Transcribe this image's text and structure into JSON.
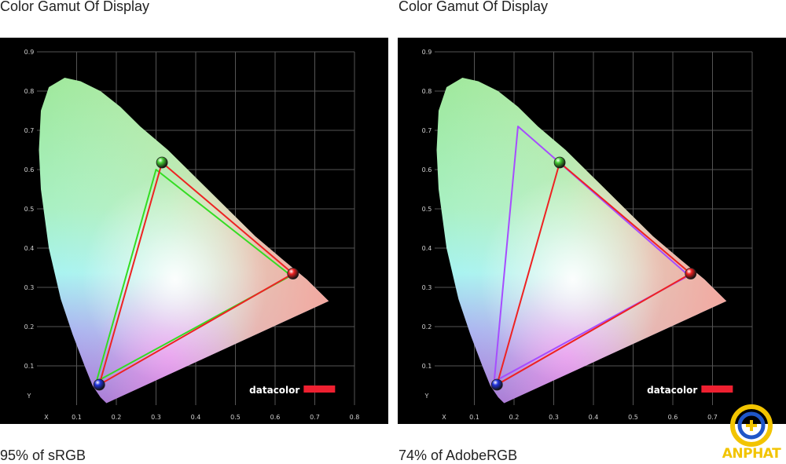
{
  "panels": [
    {
      "title": "Color Gamut Of Display",
      "caption": "95% of sRGB"
    },
    {
      "title": "Color Gamut Of Display",
      "caption": "74% of AdobeRGB"
    }
  ],
  "logo": {
    "text": "ANPHAT",
    "colors": {
      "yellow": "#f2c400",
      "blue": "#1f56c8"
    }
  },
  "chart_data": [
    {
      "type": "scatter",
      "title": "Color Gamut Of Display",
      "x_ticks": [
        "X",
        "0.1",
        "0.2",
        "0.3",
        "0.4",
        "0.5",
        "0.6",
        "0.7",
        "0.8"
      ],
      "y_ticks": [
        "Y",
        "0.1",
        "0.2",
        "0.3",
        "0.4",
        "0.5",
        "0.6",
        "0.7",
        "0.8",
        "0.9"
      ],
      "xlim": [
        0,
        0.8
      ],
      "ylim": [
        0,
        0.9
      ],
      "grid": true,
      "watermark": "datacolor",
      "reference_triangle": {
        "color": "#33dd22",
        "points": [
          [
            0.64,
            0.33
          ],
          [
            0.3,
            0.6
          ],
          [
            0.15,
            0.06
          ]
        ]
      },
      "measured_triangle": {
        "color": "#ee2222",
        "points": [
          [
            0.645,
            0.335
          ],
          [
            0.315,
            0.618
          ],
          [
            0.157,
            0.052
          ]
        ]
      },
      "primaries": [
        {
          "x": 0.645,
          "y": 0.335,
          "color": "#ee2222"
        },
        {
          "x": 0.315,
          "y": 0.618,
          "color": "#44cc33"
        },
        {
          "x": 0.157,
          "y": 0.052,
          "color": "#2233dd"
        }
      ]
    },
    {
      "type": "scatter",
      "title": "Color Gamut Of Display",
      "x_ticks": [
        "X",
        "0.1",
        "0.2",
        "0.3",
        "0.4",
        "0.5",
        "0.6",
        "0.7"
      ],
      "y_ticks": [
        "Y",
        "0.1",
        "0.2",
        "0.3",
        "0.4",
        "0.5",
        "0.6",
        "0.7",
        "0.8",
        "0.9"
      ],
      "xlim": [
        0,
        0.8
      ],
      "ylim": [
        0,
        0.9
      ],
      "grid": true,
      "watermark": "datacolor",
      "reference_triangle": {
        "color": "#a64dff",
        "points": [
          [
            0.64,
            0.33
          ],
          [
            0.21,
            0.71
          ],
          [
            0.15,
            0.06
          ]
        ]
      },
      "measured_triangle": {
        "color": "#ee2222",
        "points": [
          [
            0.645,
            0.335
          ],
          [
            0.315,
            0.618
          ],
          [
            0.157,
            0.052
          ]
        ]
      },
      "primaries": [
        {
          "x": 0.645,
          "y": 0.335,
          "color": "#ee2222"
        },
        {
          "x": 0.315,
          "y": 0.618,
          "color": "#44cc33"
        },
        {
          "x": 0.157,
          "y": 0.052,
          "color": "#2233dd"
        }
      ]
    }
  ]
}
